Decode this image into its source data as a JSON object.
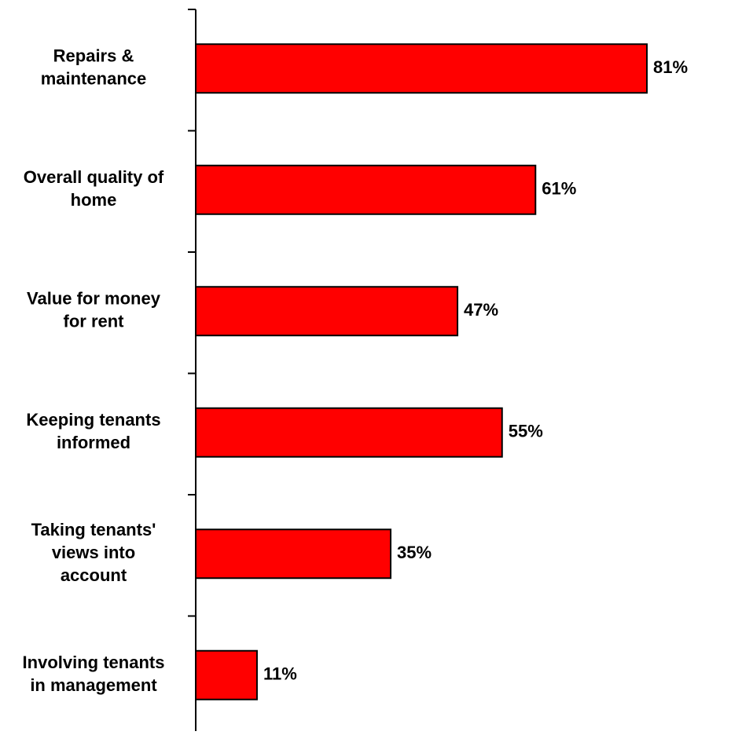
{
  "chart_data": {
    "type": "bar",
    "orientation": "horizontal",
    "categories": [
      [
        "Repairs &",
        "maintenance"
      ],
      [
        "Overall quality of",
        "home"
      ],
      [
        "Value for money",
        "for rent"
      ],
      [
        "Keeping tenants",
        "informed"
      ],
      [
        "Taking tenants'",
        "views into",
        "account"
      ],
      [
        "Involving tenants",
        "in management"
      ]
    ],
    "values": [
      81,
      61,
      47,
      55,
      35,
      11
    ],
    "value_labels": [
      "81%",
      "61%",
      "47%",
      "55%",
      "35%",
      "11%"
    ],
    "unit": "%",
    "xlim": [
      0,
      100
    ],
    "bar_color": "#ff0000",
    "bar_outline_color": "#000000",
    "grid": false,
    "legend": "none"
  }
}
